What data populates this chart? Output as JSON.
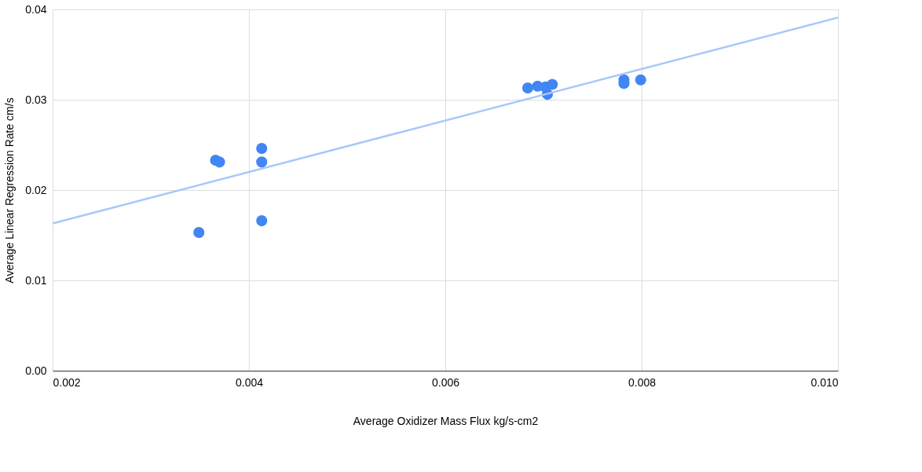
{
  "chart_data": {
    "type": "scatter",
    "xlabel": "Average Oxidizer Mass Flux kg/s-cm2",
    "ylabel": "Average Linear Regression Rate cm/s",
    "xlim": [
      0.002,
      0.01
    ],
    "xticks": [
      0.002,
      0.004,
      0.006,
      0.008,
      {
        "value": 0.01,
        "label": "0.010"
      }
    ],
    "ylim": [
      0,
      0.04
    ],
    "yticks": [
      {
        "value": 0,
        "label": "0.00"
      },
      0.01,
      0.02,
      0.03,
      0.04
    ],
    "grid": true,
    "series": [
      {
        "color": "#4285f4",
        "marker": "circle",
        "x": [
          0.00349,
          0.00366,
          0.0037,
          0.00413,
          0.00413,
          0.00413,
          0.00684,
          0.00694,
          0.00702,
          0.00704,
          0.00709,
          0.00782,
          0.00782,
          0.00799
        ],
        "values": [
          0.0153,
          0.0233,
          0.0231,
          0.0246,
          0.0231,
          0.0166,
          0.0313,
          0.0315,
          0.0314,
          0.0306,
          0.0317,
          0.0322,
          0.0318,
          0.0322
        ]
      },
      {
        "type": "line",
        "color": "#a8c7fa",
        "x": [
          0.002,
          0.01
        ],
        "values": [
          0.0163,
          0.0391
        ]
      }
    ]
  }
}
